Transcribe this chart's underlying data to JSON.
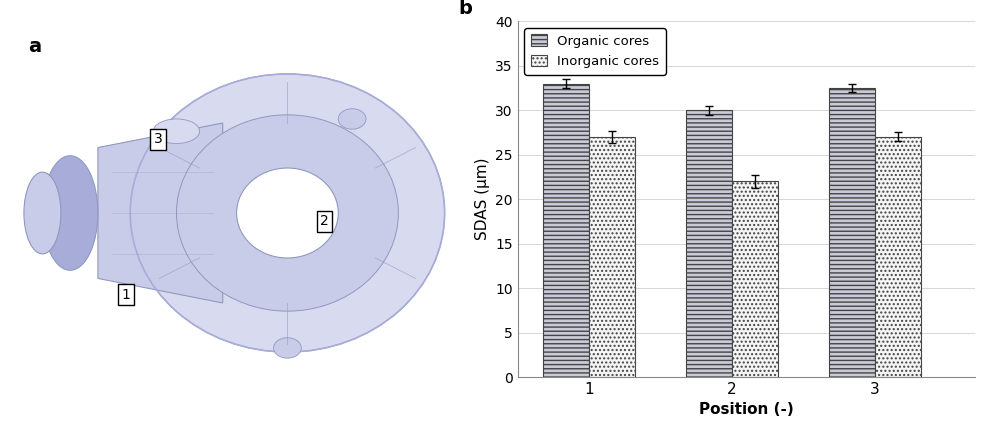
{
  "positions": [
    "1",
    "2",
    "3"
  ],
  "organic_values": [
    33.0,
    30.0,
    32.5
  ],
  "inorganic_values": [
    27.0,
    22.0,
    27.0
  ],
  "organic_errors": [
    0.5,
    0.5,
    0.5
  ],
  "inorganic_errors": [
    0.7,
    0.7,
    0.5
  ],
  "ylabel": "SDAS (μm)",
  "xlabel": "Position (-)",
  "ylim": [
    0,
    40
  ],
  "yticks": [
    0,
    5,
    10,
    15,
    20,
    25,
    30,
    35,
    40
  ],
  "legend_labels": [
    "Organic cores",
    "Inorganic cores"
  ],
  "organic_hatch": "----",
  "inorganic_hatch": "....",
  "bar_width": 0.32,
  "organic_facecolor": "#c8cad8",
  "inorganic_facecolor": "#f5f5f5",
  "edgecolor": "#444444",
  "label_b": "b",
  "label_a": "a",
  "group_positions": [
    1,
    2,
    3
  ],
  "casting_color": "#c8cce8",
  "casting_edge": "#9098c0",
  "casting_dark": "#a8acd8",
  "casting_light": "#d8daf0"
}
